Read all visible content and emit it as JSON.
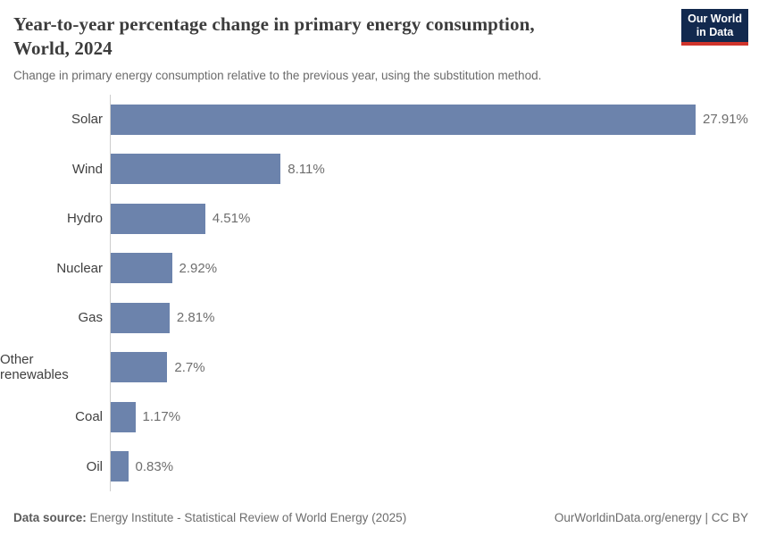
{
  "header": {
    "title_line1": "Year-to-year percentage change in primary energy consumption,",
    "title_line2": "World, 2024",
    "subtitle": "Change in primary energy consumption relative to the previous year, using the substitution method."
  },
  "logo": {
    "line1": "Our World",
    "line2": "in Data",
    "bg_color": "#12294e",
    "accent_color": "#d0342c"
  },
  "chart_data": {
    "type": "bar",
    "orientation": "horizontal",
    "title": "Year-to-year percentage change in primary energy consumption, World, 2024",
    "categories": [
      "Solar",
      "Wind",
      "Hydro",
      "Nuclear",
      "Gas",
      "Other renewables",
      "Coal",
      "Oil"
    ],
    "values": [
      27.91,
      8.11,
      4.51,
      2.92,
      2.81,
      2.7,
      1.17,
      0.83
    ],
    "value_labels": [
      "27.91%",
      "8.11%",
      "4.51%",
      "2.92%",
      "2.81%",
      "2.7%",
      "1.17%",
      "0.83%"
    ],
    "xlabel": "",
    "ylabel": "",
    "xlim": [
      0,
      29
    ],
    "grid": false,
    "legend": "none",
    "bar_color": "#6c83ac",
    "axis_line_color": "#cdcdcd"
  },
  "footer": {
    "source_label": "Data source:",
    "source_text": " Energy Institute - Statistical Review of World Energy (2025)",
    "link_text": "OurWorldinData.org/energy",
    "separator": " | ",
    "license_text": "CC BY"
  }
}
